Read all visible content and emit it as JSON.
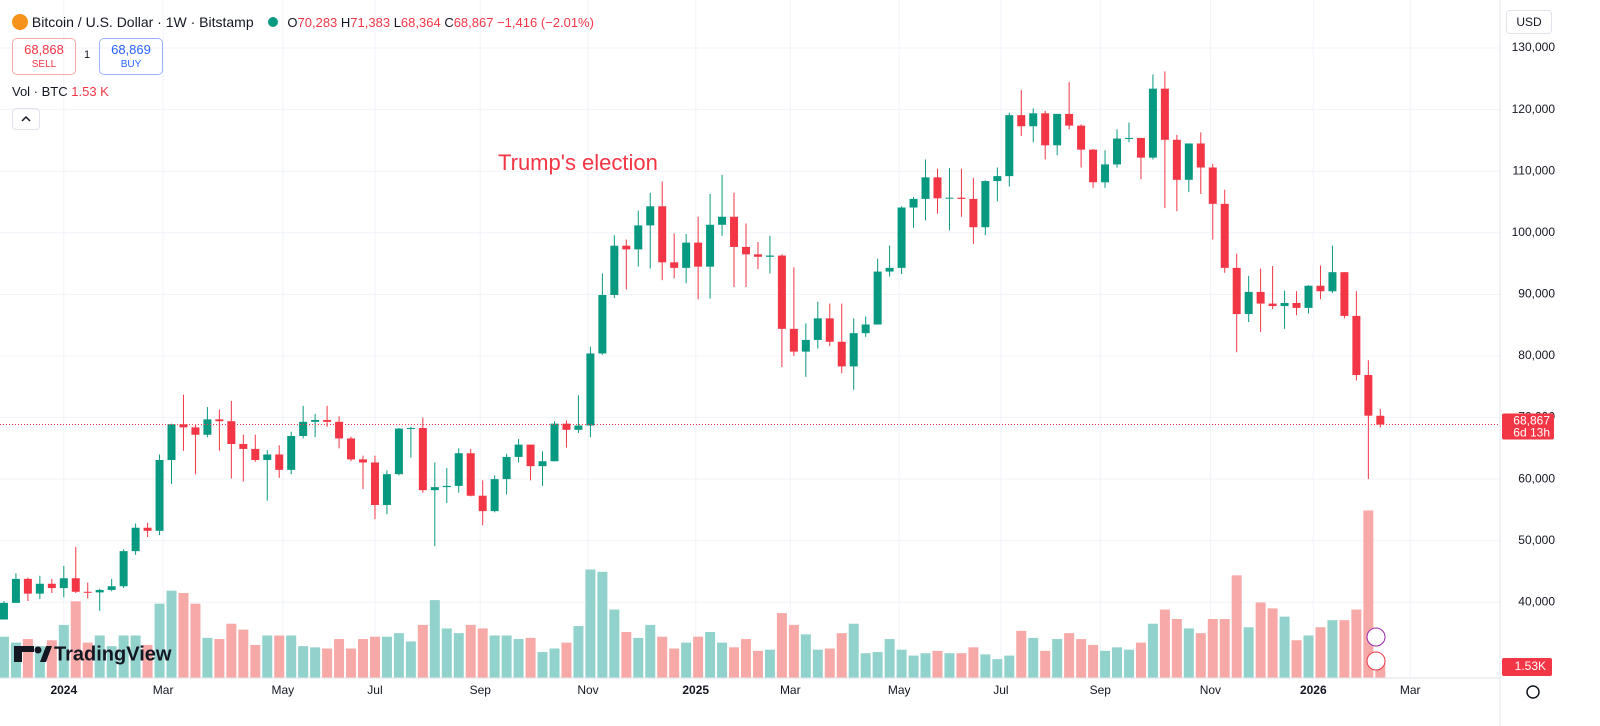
{
  "header": {
    "symbol": "Bitcoin / U.S. Dollar · 1W · Bitstamp",
    "o_label": "O",
    "open": "70,283",
    "h_label": "H",
    "high": "71,383",
    "l_label": "L",
    "low": "68,364",
    "c_label": "C",
    "close": "68,867",
    "change": "−1,416 (−2.01%)",
    "sell_price": "68,868",
    "sell": "SELL",
    "spread": "1",
    "buy_price": "68,869",
    "buy": "BUY",
    "volume_title": "Vol · BTC",
    "volume_value": "1.53 K",
    "currency": "USD",
    "brand": "TradingView"
  },
  "chart_data": {
    "type": "candlestick",
    "annotation": "Trump's election",
    "last_price": {
      "value": 68867,
      "label": "68,867"
    },
    "countdown": "6d 13h",
    "volume_last_label": "1.53K",
    "up_color": "#089981",
    "down_color": "#f23645",
    "up_volume_color": "#92d2cc",
    "down_volume_color": "#f7a9a7",
    "grid": true,
    "x": [
      0,
      1,
      2,
      3,
      4,
      5,
      6,
      7,
      8,
      9,
      10,
      11,
      12,
      13,
      14,
      15,
      16,
      17,
      18,
      19,
      20,
      21,
      22,
      23,
      24,
      25,
      26,
      27,
      28,
      29,
      30,
      31,
      32,
      33,
      34,
      35,
      36,
      37,
      38,
      39,
      40,
      41,
      42,
      43,
      44,
      45,
      46,
      47,
      48,
      49,
      50,
      51,
      52,
      53,
      54,
      55,
      56,
      57,
      58,
      59,
      60,
      61,
      62,
      63,
      64,
      65,
      66,
      67,
      68,
      69,
      70,
      71,
      72,
      73,
      74,
      75,
      76,
      77,
      78,
      79,
      80,
      81,
      82,
      83,
      84,
      85,
      86,
      87,
      88,
      89,
      90,
      91,
      92,
      93,
      94,
      95,
      96,
      97,
      98,
      99,
      100,
      101,
      102,
      103,
      104,
      105,
      106,
      107,
      108,
      109,
      110,
      111,
      112,
      113,
      114,
      115
    ],
    "open": [
      37200,
      39900,
      43800,
      41400,
      43000,
      42300,
      43900,
      41700,
      41600,
      42000,
      42600,
      48300,
      52100,
      51600,
      63100,
      68900,
      68400,
      67200,
      69700,
      69400,
      65700,
      64900,
      63100,
      64000,
      61500,
      67000,
      69300,
      69600,
      69300,
      66600,
      63200,
      62700,
      55800,
      60800,
      68200,
      68300,
      58200,
      58700,
      58900,
      64200,
      57300,
      54800,
      60000,
      63600,
      65600,
      62100,
      62900,
      69000,
      68000,
      68700,
      80400,
      89900,
      97900,
      97300,
      101200,
      104300,
      95200,
      94300,
      98400,
      94500,
      101300,
      102600,
      97700,
      96500,
      96100,
      96300,
      84400,
      80700,
      82600,
      86100,
      82300,
      78300,
      83700,
      85100,
      93700,
      94300,
      104100,
      105500,
      109000,
      105600,
      105700,
      105500,
      100900,
      108400,
      109200,
      119100,
      117300,
      119400,
      114200,
      119300,
      117400,
      113500,
      108200,
      111100,
      115300,
      115400,
      112200,
      123400,
      115100,
      108600,
      114500,
      110600,
      104700,
      94300,
      86800,
      90400,
      88500,
      88100,
      88600,
      87800,
      91400,
      90500,
      93600,
      86500,
      76900,
      70283
    ],
    "high": [
      40200,
      44700,
      44000,
      44300,
      43800,
      45900,
      49000,
      43200,
      42200,
      43800,
      48600,
      52800,
      52900,
      64000,
      69000,
      73700,
      68900,
      71700,
      71300,
      72700,
      67200,
      67200,
      64700,
      65500,
      67700,
      71900,
      70600,
      71900,
      70200,
      66900,
      63800,
      63800,
      61400,
      68300,
      68500,
      70000,
      62700,
      61800,
      65000,
      64900,
      59800,
      60600,
      64100,
      66500,
      65600,
      64500,
      69400,
      69500,
      73600,
      81500,
      93400,
      99600,
      98900,
      103600,
      106500,
      108300,
      99900,
      99800,
      102600,
      106300,
      109400,
      106500,
      101500,
      98500,
      99500,
      96500,
      94400,
      85300,
      88800,
      88500,
      88500,
      86100,
      86400,
      95800,
      97900,
      104300,
      105800,
      111900,
      110400,
      110500,
      110400,
      108900,
      108500,
      110600,
      119500,
      123200,
      120200,
      119800,
      119300,
      124500,
      117600,
      113600,
      113400,
      116800,
      117900,
      115400,
      125700,
      126200,
      115900,
      114500,
      116300,
      111200,
      107000,
      96600,
      93000,
      94200,
      94600,
      90600,
      90500,
      91500,
      94700,
      97900,
      93600,
      90500,
      79300,
      71383
    ],
    "low": [
      37200,
      39900,
      40200,
      40500,
      41500,
      40800,
      41500,
      40600,
      38600,
      41800,
      42300,
      47700,
      50600,
      50900,
      59200,
      64600,
      60800,
      66800,
      64600,
      60100,
      59600,
      62800,
      56500,
      60200,
      60800,
      66600,
      66800,
      68500,
      65000,
      62900,
      58400,
      53500,
      54300,
      60600,
      63500,
      57800,
      49100,
      56100,
      57800,
      57200,
      52500,
      54600,
      57500,
      62700,
      59800,
      58900,
      62900,
      65100,
      67500,
      66800,
      80200,
      89400,
      90800,
      94500,
      94200,
      92300,
      92600,
      91800,
      89200,
      89300,
      99500,
      91200,
      91200,
      94100,
      93400,
      78200,
      80000,
      76600,
      81200,
      81600,
      77200,
      74500,
      83100,
      85100,
      92900,
      93300,
      100800,
      102000,
      103100,
      100400,
      102600,
      98200,
      99600,
      105100,
      107500,
      115700,
      114700,
      111900,
      112600,
      116800,
      110600,
      107300,
      107300,
      110600,
      114700,
      108700,
      111900,
      104000,
      103500,
      106600,
      106300,
      98900,
      93500,
      80600,
      85500,
      83900,
      87600,
      84400,
      86600,
      86900,
      89200,
      90200,
      86100,
      76000,
      60000,
      68364
    ],
    "close": [
      39900,
      43800,
      41400,
      43000,
      42300,
      43900,
      41700,
      41600,
      42000,
      42600,
      48300,
      52100,
      51600,
      63100,
      68900,
      68400,
      67200,
      69700,
      69400,
      65700,
      64900,
      63100,
      64000,
      61500,
      67000,
      69300,
      69600,
      69300,
      66600,
      63200,
      62700,
      55800,
      60800,
      68200,
      68300,
      58200,
      58700,
      58900,
      64200,
      57300,
      54800,
      60000,
      63600,
      65600,
      62100,
      62900,
      69000,
      68000,
      68700,
      80400,
      89900,
      97900,
      97300,
      101200,
      104300,
      95200,
      94300,
      98400,
      94500,
      101300,
      102600,
      97700,
      96500,
      96100,
      96300,
      84400,
      80700,
      82600,
      86100,
      82300,
      78300,
      83700,
      85100,
      93700,
      94300,
      104100,
      105500,
      109000,
      105600,
      105700,
      105500,
      100900,
      108400,
      109200,
      119100,
      117300,
      119400,
      114200,
      119300,
      117400,
      113500,
      108200,
      111100,
      115300,
      115400,
      112200,
      123400,
      115100,
      108600,
      114500,
      110600,
      104700,
      94300,
      86800,
      90400,
      88500,
      88100,
      88600,
      87800,
      91400,
      90500,
      93600,
      86500,
      76900,
      70300,
      68867
    ],
    "volume": [
      3.5,
      3.0,
      3.3,
      2.7,
      3.2,
      4.5,
      6.5,
      3.0,
      3.6,
      2.7,
      3.6,
      3.6,
      2.8,
      6.3,
      7.4,
      7.2,
      6.3,
      3.4,
      3.3,
      4.6,
      4.1,
      2.8,
      3.6,
      3.6,
      3.6,
      2.7,
      2.6,
      2.5,
      3.3,
      2.5,
      3.3,
      3.5,
      3.5,
      3.8,
      3.1,
      4.5,
      6.6,
      4.2,
      3.8,
      4.5,
      4.2,
      3.6,
      3.6,
      3.3,
      3.4,
      2.2,
      2.5,
      3.0,
      4.4,
      9.2,
      9.0,
      5.8,
      3.9,
      3.4,
      4.5,
      3.5,
      2.5,
      3.0,
      3.5,
      3.9,
      3.0,
      2.6,
      3.3,
      2.3,
      2.4,
      5.5,
      4.5,
      3.7,
      2.4,
      2.5,
      3.8,
      4.6,
      2.1,
      2.2,
      3.3,
      2.4,
      1.9,
      2.1,
      2.3,
      2.1,
      2.1,
      2.6,
      2.0,
      1.6,
      1.9,
      4.0,
      3.4,
      2.3,
      3.3,
      3.8,
      3.3,
      2.8,
      2.3,
      2.6,
      2.4,
      3.0,
      4.6,
      5.8,
      5.0,
      4.2,
      3.8,
      5.0,
      5.0,
      8.7,
      4.3,
      6.4,
      5.9,
      5.2,
      3.2,
      3.6,
      4.3,
      4.9,
      4.9,
      5.8,
      14.2,
      1.53
    ],
    "vlim": [
      0,
      30
    ],
    "xlim": [
      -0.33,
      125
    ],
    "xticks": [
      {
        "value": 5,
        "label": "2024"
      },
      {
        "value": 13.3,
        "label": "Mar"
      },
      {
        "value": 23.3,
        "label": "May"
      },
      {
        "value": 31,
        "label": "Jul"
      },
      {
        "value": 39.8,
        "label": "Sep"
      },
      {
        "value": 48.8,
        "label": "Nov"
      },
      {
        "value": 57.8,
        "label": "2025"
      },
      {
        "value": 65.7,
        "label": "Mar"
      },
      {
        "value": 74.8,
        "label": "May"
      },
      {
        "value": 83.3,
        "label": "Jul"
      },
      {
        "value": 91.6,
        "label": "Sep"
      },
      {
        "value": 100.8,
        "label": "Nov"
      },
      {
        "value": 109.4,
        "label": "2026"
      },
      {
        "value": 117.5,
        "label": "Mar"
      }
    ],
    "ylim": [
      27700,
      136500
    ],
    "yticks": [
      {
        "value": 40000,
        "label": "40,000"
      },
      {
        "value": 50000,
        "label": "50,000"
      },
      {
        "value": 60000,
        "label": "60,000"
      },
      {
        "value": 70000,
        "label": "70,000"
      },
      {
        "value": 80000,
        "label": "80,000"
      },
      {
        "value": 90000,
        "label": "90,000"
      },
      {
        "value": 100000,
        "label": "100,000"
      },
      {
        "value": 110000,
        "label": "110,000"
      },
      {
        "value": 120000,
        "label": "120,000"
      },
      {
        "value": 130000,
        "label": "130,000"
      }
    ]
  }
}
